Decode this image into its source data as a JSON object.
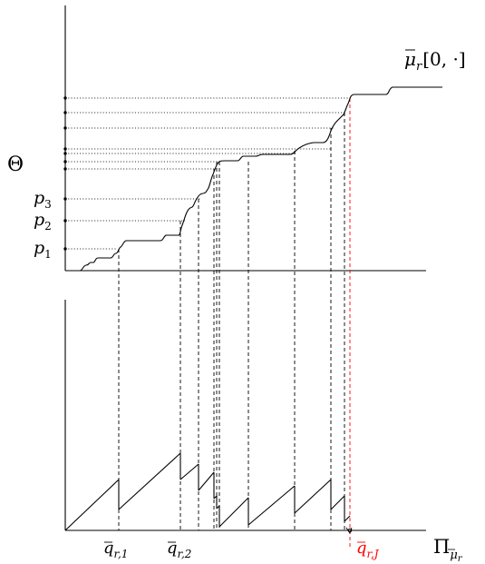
{
  "colors": {
    "ink": "#000000",
    "highlight": "#ff0000",
    "background": "#ffffff"
  },
  "labels": {
    "curve_label": {
      "symbol": "μ",
      "subscript": "r",
      "suffix": "[0, ·]"
    },
    "y_axis_symbol": "Θ",
    "y_ticks": [
      {
        "symbol": "p",
        "subscript": "3"
      },
      {
        "symbol": "p",
        "subscript": "2"
      },
      {
        "symbol": "p",
        "subscript": "1"
      }
    ],
    "x_ticks": [
      {
        "symbol": "q",
        "subscript": "r,1"
      },
      {
        "symbol": "q",
        "subscript": "r,2"
      },
      {
        "symbol": "q",
        "subscript": "r,J"
      }
    ],
    "x_axis_label": {
      "symbol": "Π",
      "subscript_symbol": "μ",
      "subscript_index": "r"
    }
  }
}
